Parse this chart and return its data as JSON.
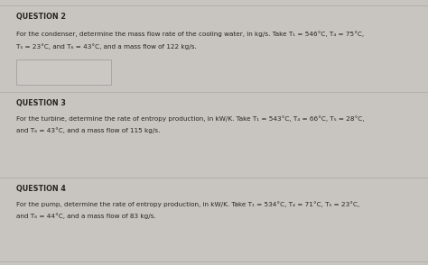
{
  "bg_color": "#c8c4c0",
  "panel_color": "#e2deda",
  "box_color": "#ddd9d5",
  "line_color": "#b0aca8",
  "q2_header": "QUESTION 2",
  "q2_line1": "For the condenser, determine the mass flow rate of the cooling water, in kg/s. Take T₁ = 546°C, T₄ = 75°C,",
  "q2_line2": "T₅ = 23°C, and T₆ = 43°C, and a mass flow of 122 kg/s.",
  "q3_header": "QUESTION 3",
  "q3_line1": "For the turbine, determine the rate of entropy production, in kW/K. Take T₁ = 543°C, T₄ = 66°C, T₅ = 28°C,",
  "q3_line2": "and T₆ = 43°C, and a mass flow of 115 kg/s.",
  "q4_header": "QUESTION 4",
  "q4_line1": "For the pump, determine the rate of entropy production, in kW/K. Take T₁ = 534°C, T₄ = 71°C, T₅ = 23°C,",
  "q4_line2": "and T₆ = 44°C, and a mass flow of 83 kg/s.",
  "text_color": "#2a2520",
  "header_fontsize": 5.8,
  "body_fontsize": 5.2,
  "answer_box_color": "#cbc7c3"
}
